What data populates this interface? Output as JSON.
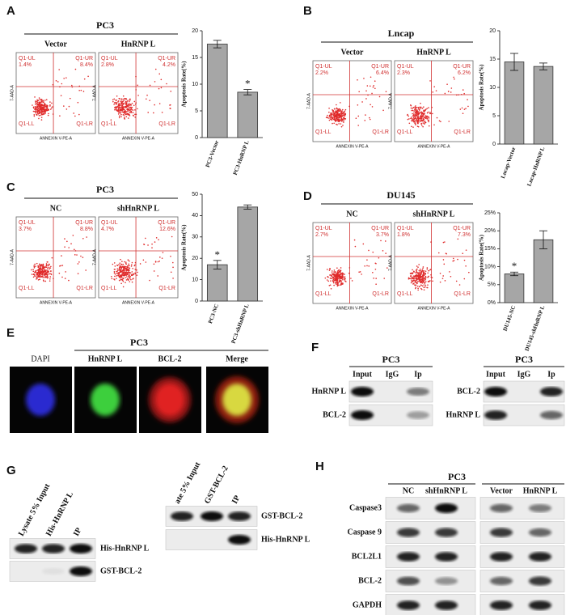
{
  "chart_data": [
    {
      "type": "bar",
      "y_label": "Apoptosis Rate(%)",
      "categories": [
        "PC3-Vector",
        "PC3-HnRNP L"
      ],
      "values": [
        17.5,
        8.5
      ],
      "errors": [
        0.7,
        0.5
      ],
      "annotations": [
        {
          "category": "PC3-HnRNP L",
          "text": "*"
        }
      ],
      "ylim": [
        0,
        20
      ],
      "yticks": [
        0,
        5,
        10,
        15,
        20
      ],
      "color": "#a6a6a6"
    },
    {
      "type": "bar",
      "y_label": "Apoptosis Rate(%)",
      "categories": [
        "Lncap-Vector",
        "Lncap-HnRNP L"
      ],
      "values": [
        14.5,
        13.7
      ],
      "errors": [
        1.5,
        0.6
      ],
      "annotations": [],
      "ylim": [
        0,
        20
      ],
      "yticks": [
        0,
        5,
        10,
        15,
        20
      ],
      "color": "#a6a6a6"
    },
    {
      "type": "bar",
      "y_label": "Apoptosis Rate(%)",
      "categories": [
        "PC3-NC",
        "PC3-shHnRNP L"
      ],
      "values": [
        17,
        44
      ],
      "errors": [
        2,
        1
      ],
      "annotations": [
        {
          "category": "PC3-NC",
          "text": "*"
        }
      ],
      "ylim": [
        0,
        50
      ],
      "yticks": [
        0,
        10,
        20,
        30,
        40,
        50
      ],
      "color": "#a6a6a6"
    },
    {
      "type": "bar",
      "y_label": "Apoptosis Rate(%)",
      "categories": [
        "DU145-NC",
        "DU145-shHnRNP L"
      ],
      "values": [
        8,
        17.5
      ],
      "errors": [
        0.5,
        2.5
      ],
      "annotations": [
        {
          "category": "DU145-NC",
          "text": "*"
        }
      ],
      "ylim": [
        0,
        25
      ],
      "yticks": [
        {
          "value": 0,
          "label": "0%"
        },
        {
          "value": 5,
          "label": "5%"
        },
        {
          "value": 10,
          "label": "10%"
        },
        {
          "value": 15,
          "label": "15%"
        },
        {
          "value": 20,
          "label": "20%"
        },
        {
          "value": 25,
          "label": "25%"
        }
      ],
      "color": "#a6a6a6"
    }
  ],
  "flow_panels": [
    {
      "panel": "A",
      "title": "PC3",
      "x_label": "ANNEXIN V-PE-A",
      "y_label": "7-AAD-A",
      "plots": [
        {
          "label": "Vector",
          "q_names": [
            "Q1-UL",
            "Q1-UR",
            "Q1-LL",
            "Q1-LR"
          ],
          "q_ul": "1.4%",
          "q_ur": "8.4%"
        },
        {
          "label": "HnRNP L",
          "q_names": [
            "Q1-UL",
            "Q1-UR",
            "Q1-LL",
            "Q1-LR"
          ],
          "q_ul": "2.8%",
          "q_ur": "4.2%"
        }
      ]
    },
    {
      "panel": "B",
      "title": "Lncap",
      "x_label": "ANNEXIN V-PE-A",
      "y_label": "7-AAD-A",
      "plots": [
        {
          "label": "Vector",
          "q_names": [
            "Q1-UL",
            "Q1-UR",
            "Q1-LL",
            "Q1-LR"
          ],
          "q_ul": "2.2%",
          "q_ur": "6.4%"
        },
        {
          "label": "HnRNP L",
          "q_names": [
            "Q1-UL",
            "Q1-UR",
            "Q1-LL",
            "Q1-LR"
          ],
          "q_ul": "2.3%",
          "q_ur": "6.2%"
        }
      ]
    },
    {
      "panel": "C",
      "title": "PC3",
      "x_label": "ANNEXIN V-PE-A",
      "y_label": "7-AAD-A",
      "plots": [
        {
          "label": "NC",
          "q_names": [
            "Q1-UL",
            "Q1-UR",
            "Q1-LL",
            "Q1-LR"
          ],
          "q_ul": "3.7%",
          "q_ur": "8.8%"
        },
        {
          "label": "shHnRNP L",
          "q_names": [
            "Q1-UL",
            "Q1-UR",
            "Q1-LL",
            "Q1-LR"
          ],
          "q_ul": "4.7%",
          "q_ur": "12.6%"
        }
      ]
    },
    {
      "panel": "D",
      "title": "DU145",
      "x_label": "ANNEXIN V-PE-A",
      "y_label": "7-AAD-A",
      "plots": [
        {
          "label": "NC",
          "q_names": [
            "Q1-UL",
            "Q1-UR",
            "Q1-LL",
            "Q1-LR"
          ],
          "q_ul": "2.7%",
          "q_ur": "3.7%"
        },
        {
          "label": "shHnRNP L",
          "q_names": [
            "Q1-UL",
            "Q1-UR",
            "Q1-LL",
            "Q1-LR"
          ],
          "q_ul": "1.8%",
          "q_ur": "7.3%"
        }
      ]
    }
  ],
  "if_panel": {
    "letter": "E",
    "title": "PC3",
    "channels": [
      {
        "label": "DAPI",
        "color": "#2a2ad0"
      },
      {
        "label": "HnRNP L",
        "color": "#3ecf3e"
      },
      {
        "label": "BCL-2",
        "color": "#e02020"
      },
      {
        "label": "Merge",
        "color": "#d8d840"
      }
    ]
  },
  "coip_panel": {
    "letter": "F",
    "blots": [
      {
        "title": "PC3",
        "lanes": [
          "Input",
          "IgG",
          "Ip"
        ],
        "rows": [
          "HnRNP L",
          "BCL-2"
        ]
      },
      {
        "title": "PC3",
        "lanes": [
          "Input",
          "IgG",
          "Ip"
        ],
        "rows": [
          "BCL-2",
          "HnRNP L"
        ]
      }
    ]
  },
  "pulldown_panel": {
    "letter": "G",
    "blots": [
      {
        "lanes": [
          "Lysate 5% Input",
          "His-HnRNP L",
          "IP"
        ],
        "rows": [
          "His-HnRNP L",
          "GST-BCL-2"
        ]
      },
      {
        "lanes": [
          "ate 5% Input",
          "GST-BCL-2",
          "IP"
        ],
        "rows": [
          "GST-BCL-2",
          "His-HnRNP L"
        ]
      }
    ]
  },
  "western_panel": {
    "letter": "H",
    "title": "PC3",
    "lanes": [
      "NC",
      "shHnRNP L",
      "Vector",
      "HnRNP L"
    ],
    "rows": [
      "Caspase3",
      "Caspase 9",
      "BCL2L1",
      "BCL-2",
      "GAPDH"
    ]
  }
}
